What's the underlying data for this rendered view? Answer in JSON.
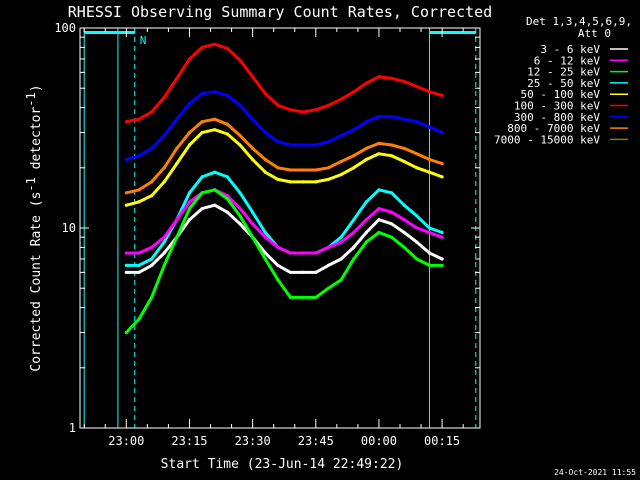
{
  "chart_data": {
    "type": "line",
    "title": "RHESSI Observing Summary Count Rates, Corrected",
    "xlabel": "Start Time (23-Jun-14 22:49:22)",
    "ylabel": "Corrected Count Rate (s",
    "ylabel_sup1": "-1",
    "ylabel_mid": " detector",
    "ylabel_sup2": "-1",
    "ylabel_end": ")",
    "y_scale": "log",
    "ylim": [
      1,
      100
    ],
    "xlim": [
      "22:49",
      "00:24"
    ],
    "x_ticks": [
      "23:00",
      "23:15",
      "23:30",
      "23:45",
      "00:00",
      "00:15"
    ],
    "y_ticks": [
      "1",
      "10",
      "100"
    ],
    "legend_header": [
      "Det 1,3,4,5,6,9,",
      "Att 0"
    ],
    "legend_position": "top-right",
    "series": [
      {
        "name": "3 - 6 keV",
        "color": "#ffffff",
        "x": [
          "23:00",
          "23:03",
          "23:06",
          "23:09",
          "23:12",
          "23:15",
          "23:18",
          "23:21",
          "23:24",
          "23:27",
          "23:30",
          "23:33",
          "23:36",
          "23:39",
          "23:42",
          "23:45",
          "23:48",
          "23:51",
          "23:54",
          "23:57",
          "00:00",
          "00:03",
          "00:06",
          "00:09",
          "00:12",
          "00:15"
        ],
        "y": [
          6,
          6,
          6.5,
          7.5,
          9,
          11,
          12.5,
          13,
          12,
          10.5,
          9,
          7.5,
          6.5,
          6,
          6,
          6,
          6.5,
          7,
          8,
          9.5,
          11,
          10.5,
          9.5,
          8.5,
          7.5,
          7
        ]
      },
      {
        "name": "6 - 12 keV",
        "color": "#ff00ff",
        "x": [
          "23:00",
          "23:03",
          "23:06",
          "23:09",
          "23:12",
          "23:15",
          "23:18",
          "23:21",
          "23:24",
          "23:27",
          "23:30",
          "23:33",
          "23:36",
          "23:39",
          "23:42",
          "23:45",
          "23:48",
          "23:51",
          "23:54",
          "23:57",
          "00:00",
          "00:03",
          "00:06",
          "00:09",
          "00:12",
          "00:15"
        ],
        "y": [
          7.5,
          7.5,
          8,
          9,
          11,
          13.5,
          15,
          15.5,
          14.5,
          12.5,
          10.5,
          9,
          8,
          7.5,
          7.5,
          7.5,
          8,
          8.5,
          9.5,
          11,
          12.5,
          12,
          11,
          10,
          9.5,
          9
        ]
      },
      {
        "name": "12 - 25 keV",
        "color": "#00ff00",
        "x": [
          "23:00",
          "23:03",
          "23:06",
          "23:09",
          "23:12",
          "23:15",
          "23:18",
          "23:21",
          "23:24",
          "23:27",
          "23:30",
          "23:33",
          "23:36",
          "23:39",
          "23:42",
          "23:45",
          "23:48",
          "23:51",
          "23:54",
          "23:57",
          "00:00",
          "00:03",
          "00:06",
          "00:09",
          "00:12",
          "00:15"
        ],
        "y": [
          3,
          3.5,
          4.5,
          6.5,
          9,
          12.5,
          15,
          15.5,
          14,
          11.5,
          9,
          7,
          5.5,
          4.5,
          4.5,
          4.5,
          5,
          5.5,
          7,
          8.5,
          9.5,
          9,
          8,
          7,
          6.5,
          6.5
        ]
      },
      {
        "name": "25 - 50 keV",
        "color": "#00ffff",
        "x": [
          "23:00",
          "23:03",
          "23:06",
          "23:09",
          "23:12",
          "23:15",
          "23:18",
          "23:21",
          "23:24",
          "23:27",
          "23:30",
          "23:33",
          "23:36",
          "23:39",
          "23:42",
          "23:45",
          "23:48",
          "23:51",
          "23:54",
          "23:57",
          "00:00",
          "00:03",
          "00:06",
          "00:09",
          "00:12",
          "00:15"
        ],
        "y": [
          6.5,
          6.5,
          7,
          8.5,
          11,
          15,
          18,
          19,
          18,
          15,
          12,
          9.5,
          8,
          7.5,
          7.5,
          7.5,
          8,
          9,
          11,
          13.5,
          15.5,
          15,
          13,
          11.5,
          10,
          9.5
        ]
      },
      {
        "name": "50 - 100 keV",
        "color": "#ffff00",
        "x": [
          "23:00",
          "23:03",
          "23:06",
          "23:09",
          "23:12",
          "23:15",
          "23:18",
          "23:21",
          "23:24",
          "23:27",
          "23:30",
          "23:33",
          "23:36",
          "23:39",
          "23:42",
          "23:45",
          "23:48",
          "23:51",
          "23:54",
          "23:57",
          "00:00",
          "00:03",
          "00:06",
          "00:09",
          "00:12",
          "00:15"
        ],
        "y": [
          13,
          13.5,
          14.5,
          17,
          21,
          26,
          30,
          31,
          29.5,
          26,
          22,
          19,
          17.5,
          17,
          17,
          17,
          17.5,
          18.5,
          20,
          22,
          23.5,
          23,
          21.5,
          20,
          19,
          18
        ]
      },
      {
        "name": "100 - 300 keV",
        "color": "#ff0000",
        "x": [
          "23:00",
          "23:03",
          "23:06",
          "23:09",
          "23:12",
          "23:15",
          "23:18",
          "23:21",
          "23:24",
          "23:27",
          "23:30",
          "23:33",
          "23:36",
          "23:39",
          "23:42",
          "23:45",
          "23:48",
          "23:51",
          "23:54",
          "23:57",
          "00:00",
          "00:03",
          "00:06",
          "00:09",
          "00:12",
          "00:15"
        ],
        "y": [
          34,
          35,
          38,
          45,
          56,
          70,
          80,
          83,
          79,
          69,
          57,
          47,
          41,
          39,
          38,
          39,
          41,
          44,
          48,
          53,
          57,
          56,
          54,
          51,
          48,
          46
        ]
      },
      {
        "name": "300 - 800 keV",
        "color": "#0000ff",
        "x": [
          "23:00",
          "23:03",
          "23:06",
          "23:09",
          "23:12",
          "23:15",
          "23:18",
          "23:21",
          "23:24",
          "23:27",
          "23:30",
          "23:33",
          "23:36",
          "23:39",
          "23:42",
          "23:45",
          "23:48",
          "23:51",
          "23:54",
          "23:57",
          "00:00",
          "00:03",
          "00:06",
          "00:09",
          "00:12",
          "00:15"
        ],
        "y": [
          22,
          23,
          25,
          29,
          35,
          42,
          47,
          48,
          46,
          41,
          35,
          30,
          27,
          26,
          26,
          26,
          27,
          29,
          31,
          34,
          36,
          36,
          35,
          34,
          32,
          30
        ]
      },
      {
        "name": "800 - 7000 keV",
        "color": "#ff8000",
        "x": [
          "23:00",
          "23:03",
          "23:06",
          "23:09",
          "23:12",
          "23:15",
          "23:18",
          "23:21",
          "23:24",
          "23:27",
          "23:30",
          "23:33",
          "23:36",
          "23:39",
          "23:42",
          "23:45",
          "23:48",
          "23:51",
          "23:54",
          "23:57",
          "00:00",
          "00:03",
          "00:06",
          "00:09",
          "00:12",
          "00:15"
        ],
        "y": [
          15,
          15.5,
          17,
          20,
          25,
          30,
          34,
          35,
          33,
          29,
          25,
          22,
          20,
          19.5,
          19.5,
          19.5,
          20,
          21.5,
          23,
          25,
          26.5,
          26,
          25,
          23.5,
          22,
          21
        ]
      },
      {
        "name": "7000 - 15000 keV",
        "color": "#808000",
        "x": [],
        "y": []
      }
    ],
    "vertical_markers": [
      {
        "x": "22:50",
        "style": "solid",
        "color": "#00ffff"
      },
      {
        "x": "22:58",
        "style": "solid",
        "color": "#00ffff"
      },
      {
        "x": "23:02",
        "style": "dashed",
        "color": "#00ffff",
        "label": "N"
      },
      {
        "x": "00:12",
        "style": "solid",
        "color": "#00ffff"
      },
      {
        "x": "00:23",
        "style": "dashed",
        "color": "#00ffff"
      }
    ],
    "horizontal_markers": [
      {
        "x": [
          "22:50",
          "23:02"
        ],
        "y": 95,
        "color": "#00ffff"
      },
      {
        "x": [
          "00:12",
          "00:23"
        ],
        "y": 95,
        "color": "#00ffff"
      }
    ]
  },
  "footer": {
    "timestamp": "24-Oct-2021 11:55"
  }
}
